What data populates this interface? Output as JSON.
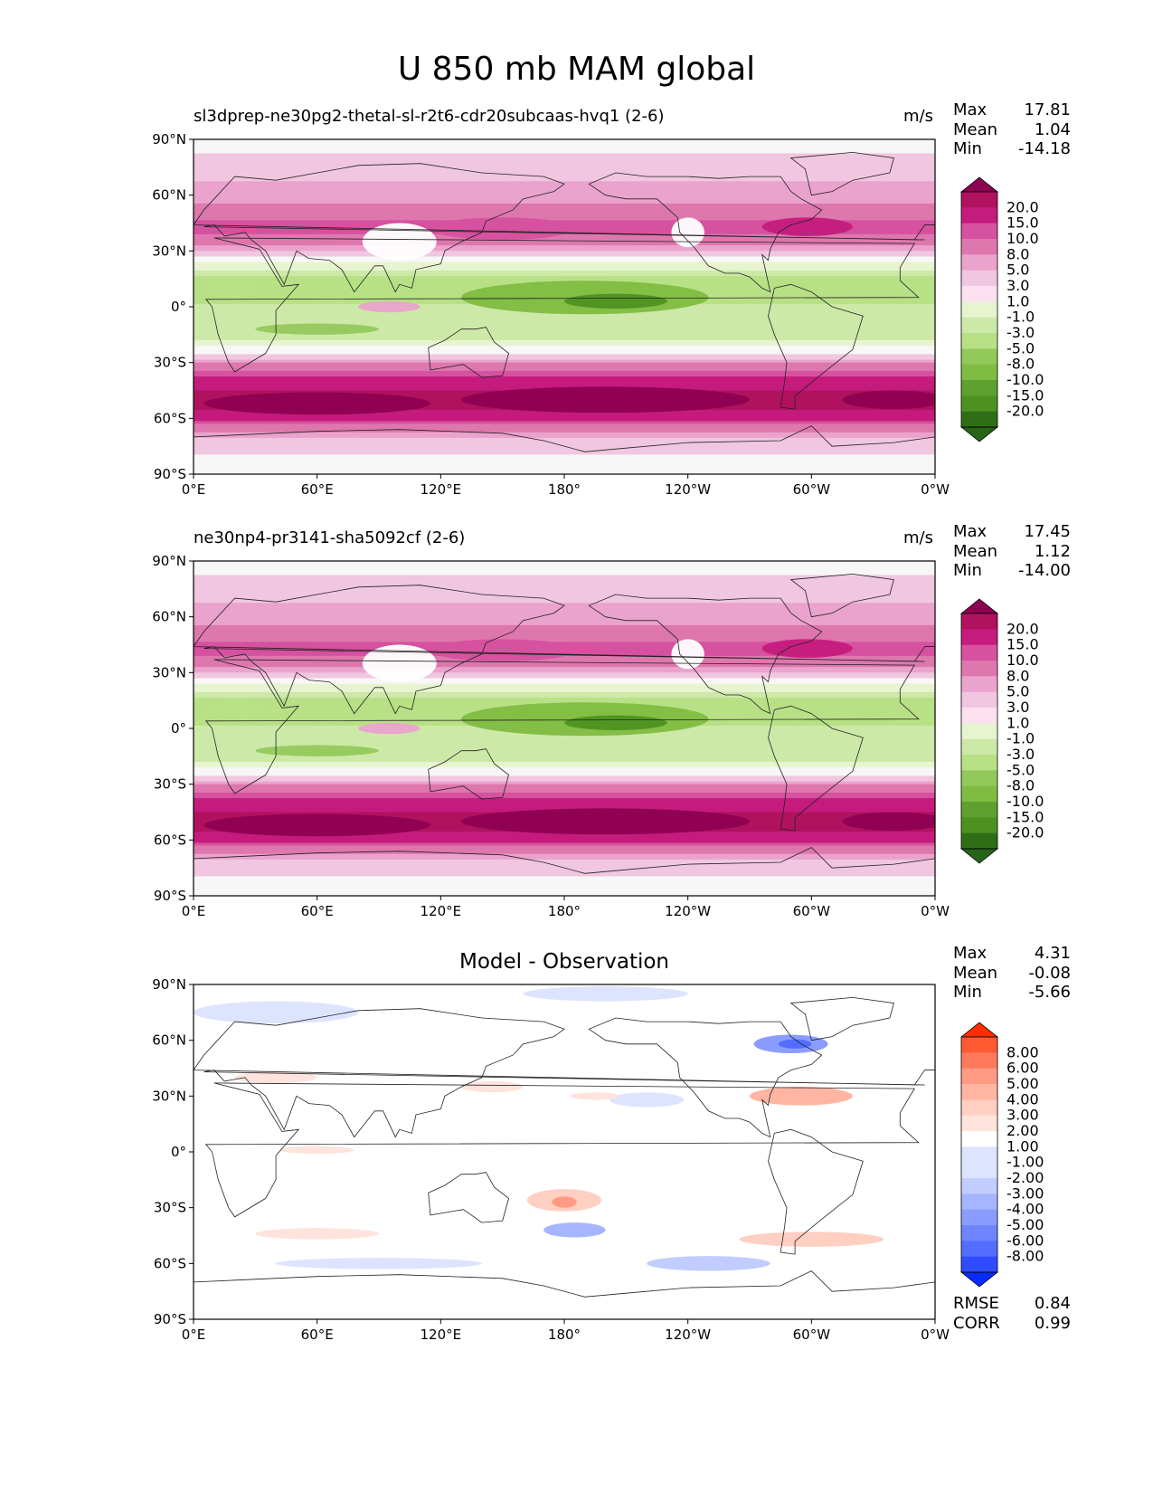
{
  "figure": {
    "title": "U 850 mb MAM global"
  },
  "colorbars": {
    "full": {
      "labels": [
        "20.0",
        "15.0",
        "10.0",
        "8.0",
        "5.0",
        "3.0",
        "1.0",
        "-1.0",
        "-3.0",
        "-5.0",
        "-8.0",
        "-10.0",
        "-15.0",
        "-20.0"
      ],
      "colors": [
        "#8e0152",
        "#b0125f",
        "#c51b7d",
        "#d6519f",
        "#de77ae",
        "#eaa3cc",
        "#f1c6e0",
        "#fde0ef",
        "#f7f7f7",
        "#e6f5d0",
        "#cde9a8",
        "#b8e186",
        "#93c95b",
        "#7fbc41",
        "#5ea131",
        "#4d9221",
        "#2f6e17",
        "#276419"
      ]
    },
    "diff": {
      "labels": [
        "8.00",
        "6.00",
        "5.00",
        "4.00",
        "3.00",
        "2.00",
        "1.00",
        "-1.00",
        "-2.00",
        "-3.00",
        "-4.00",
        "-5.00",
        "-6.00",
        "-8.00"
      ],
      "colors": [
        "#ff2d00",
        "#ff5a32",
        "#ff7a5c",
        "#ff9a83",
        "#ffb5a2",
        "#ffcfc2",
        "#ffe3dc",
        "#ffffff",
        "#dde4ff",
        "#c2cdff",
        "#a6b5ff",
        "#8a9dff",
        "#6e85ff",
        "#526dff",
        "#2f4dff",
        "#0a2bff"
      ]
    }
  },
  "chart_data": [
    {
      "type": "heatmap",
      "title": "sl3dprep-ne30pg2-thetal-sl-r2t6-cdr20subcaas-hvq1 (2-6)",
      "units": "m/s",
      "stats": {
        "max": "17.81",
        "mean": "1.04",
        "min": "-14.18"
      },
      "x_ticks": [
        "0°E",
        "60°E",
        "120°E",
        "180°",
        "120°W",
        "60°W",
        "0°W"
      ],
      "y_ticks": [
        "90°N",
        "60°N",
        "30°N",
        "0°",
        "30°S",
        "60°S",
        "90°S"
      ],
      "colorbar": "full",
      "zonal_profile": {
        "lat": [
          90,
          75,
          60,
          50,
          42,
          35,
          25,
          15,
          5,
          0,
          -5,
          -15,
          -25,
          -35,
          -45,
          -52,
          -58,
          -65,
          -72,
          -80,
          -90
        ],
        "u": [
          0,
          2,
          4,
          6,
          10,
          6,
          0,
          -6,
          -7,
          -4,
          -5,
          -5,
          1,
          8,
          15,
          17,
          13,
          6,
          2,
          1,
          0
        ]
      }
    },
    {
      "type": "heatmap",
      "title": "ne30np4-pr3141-sha5092cf (2-6)",
      "units": "m/s",
      "stats": {
        "max": "17.45",
        "mean": "1.12",
        "min": "-14.00"
      },
      "x_ticks": [
        "0°E",
        "60°E",
        "120°E",
        "180°",
        "120°W",
        "60°W",
        "0°W"
      ],
      "y_ticks": [
        "90°N",
        "60°N",
        "30°N",
        "0°",
        "30°S",
        "60°S",
        "90°S"
      ],
      "colorbar": "full",
      "zonal_profile": {
        "lat": [
          90,
          75,
          60,
          50,
          42,
          35,
          25,
          15,
          5,
          0,
          -5,
          -15,
          -25,
          -35,
          -45,
          -52,
          -58,
          -65,
          -72,
          -80,
          -90
        ],
        "u": [
          0,
          2,
          4,
          6,
          10,
          6,
          0,
          -6,
          -8,
          -4,
          -5,
          -5,
          1,
          8,
          15,
          17,
          13,
          6,
          2,
          1,
          0
        ]
      }
    },
    {
      "type": "heatmap",
      "title": "Model - Observation",
      "stats": {
        "max": "4.31",
        "mean": "-0.08",
        "min": "-5.66"
      },
      "extra_stats": {
        "rmse": "0.84",
        "corr": "0.99"
      },
      "x_ticks": [
        "0°E",
        "60°E",
        "120°E",
        "180°",
        "120°W",
        "60°W",
        "0°W"
      ],
      "y_ticks": [
        "90°N",
        "60°N",
        "30°N",
        "0°",
        "30°S",
        "60°S",
        "90°S"
      ],
      "colorbar": "diff"
    }
  ],
  "labels": {
    "max": "Max",
    "mean": "Mean",
    "min": "Min",
    "rmse": "RMSE",
    "corr": "CORR"
  }
}
